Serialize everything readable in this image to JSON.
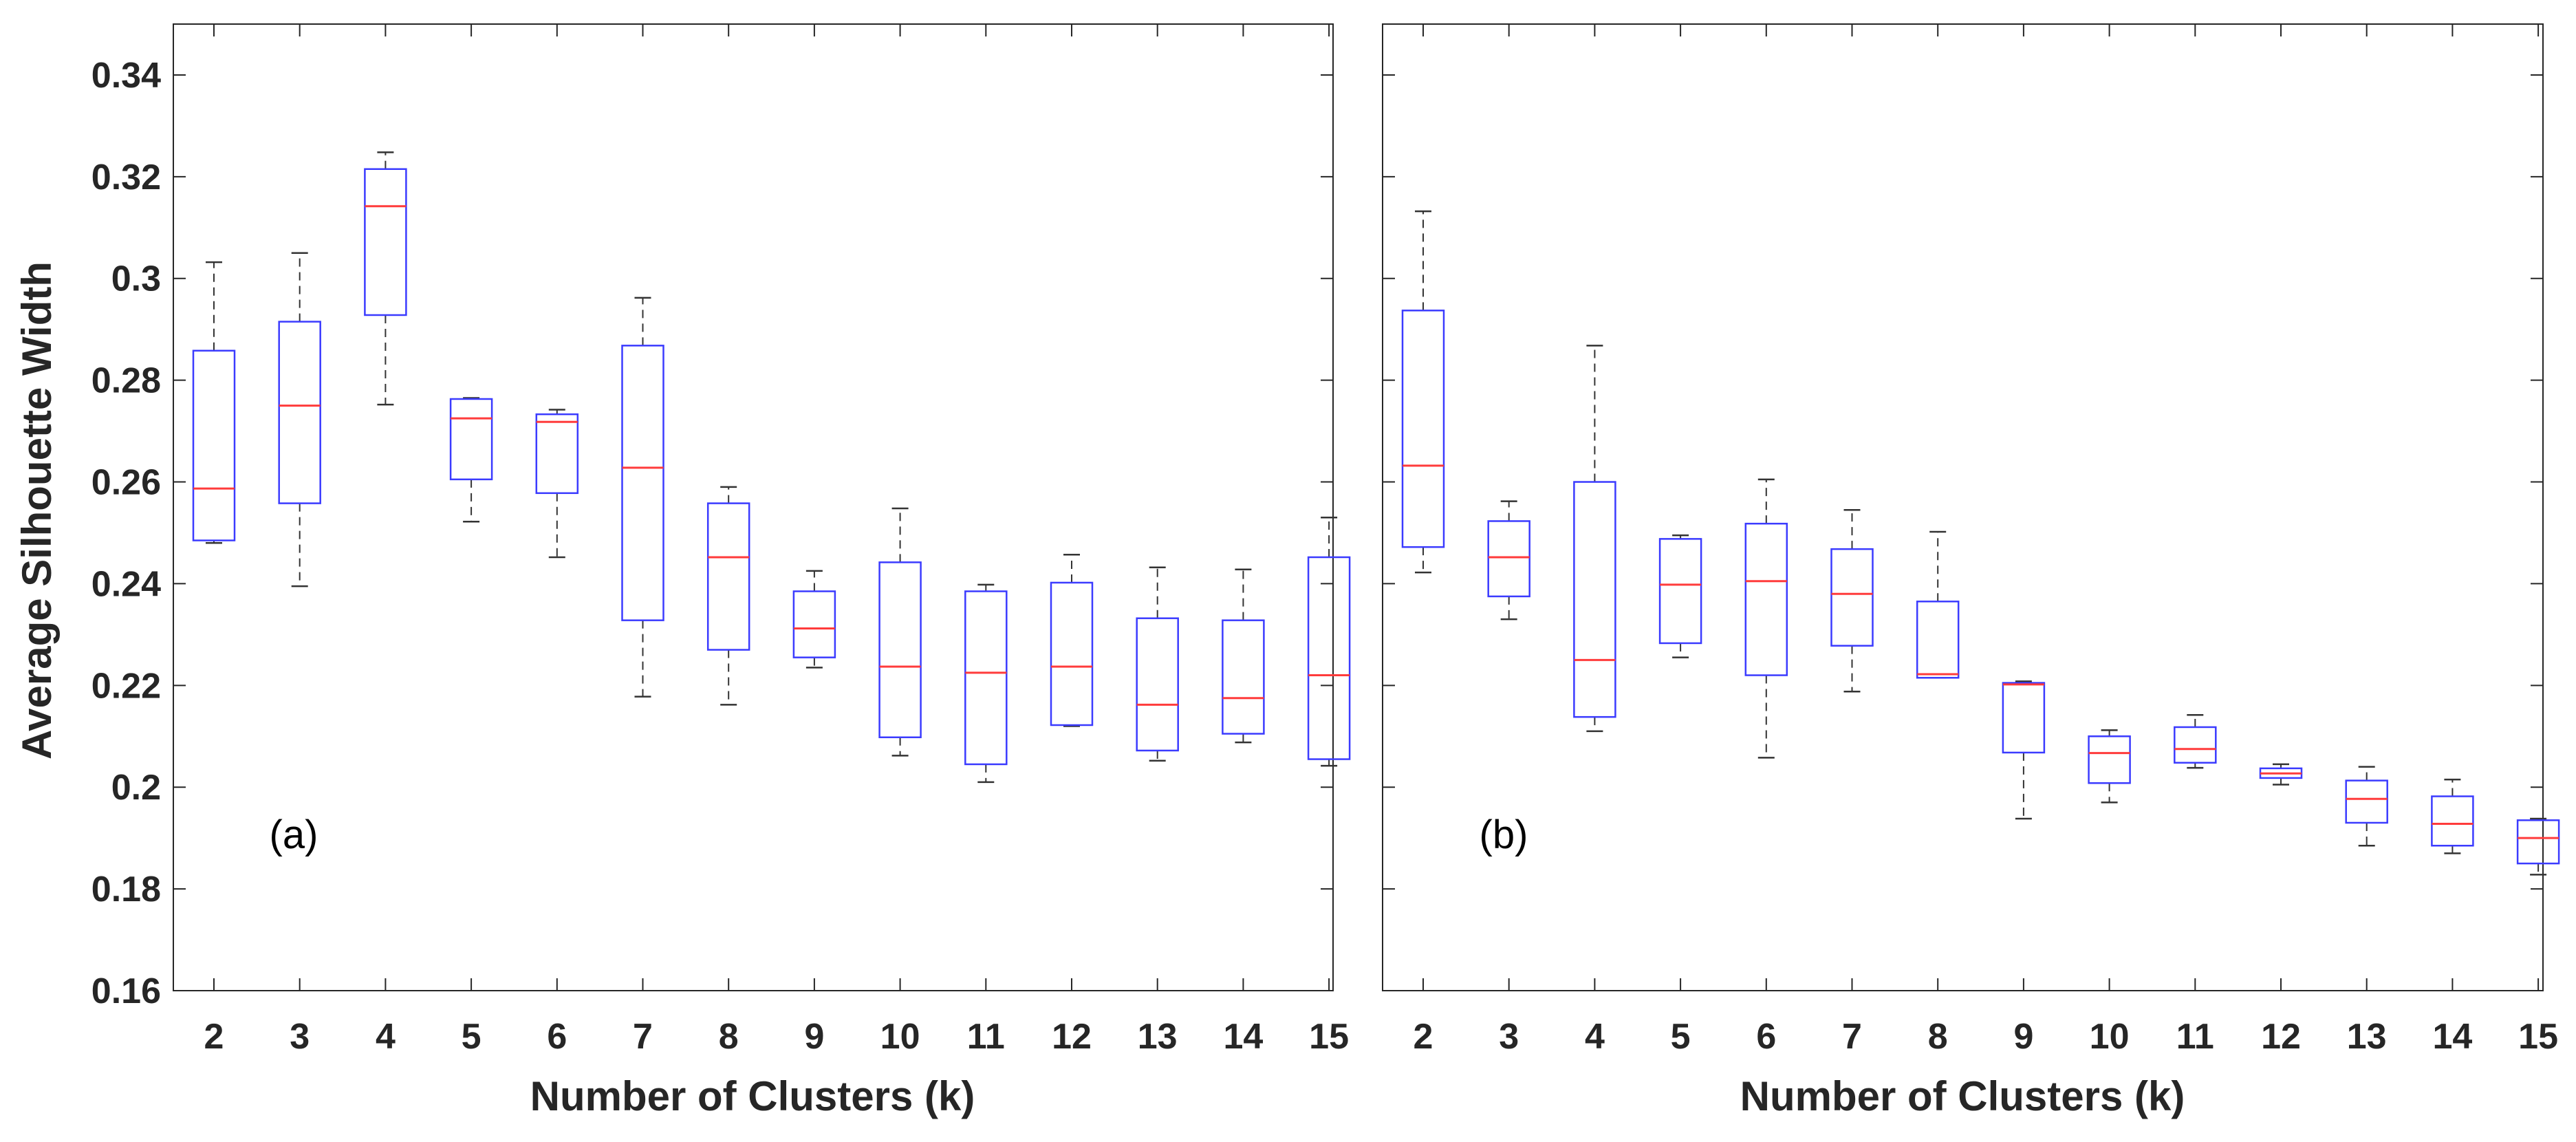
{
  "figure": {
    "ylabel": "Average Silhouette Width",
    "colors": {
      "box": "#3b3bff",
      "median": "#ff3b3b",
      "whisker": "#333333",
      "frame": "#262626"
    }
  },
  "chart_data": [
    {
      "type": "box",
      "panel_label": "(a)",
      "title": "",
      "xlabel": "Number of Clusters (k)",
      "ylabel": "Average Silhouette Width",
      "ylim": [
        0.16,
        0.35
      ],
      "yticks": [
        0.16,
        0.18,
        0.2,
        0.22,
        0.24,
        0.26,
        0.28,
        0.3,
        0.32,
        0.34
      ],
      "ytick_labels": [
        "0.16",
        "0.18",
        "0.2",
        "0.22",
        "0.24",
        "0.26",
        "0.28",
        "0.3",
        "0.32",
        "0.34"
      ],
      "categories": [
        "2",
        "3",
        "4",
        "5",
        "6",
        "7",
        "8",
        "9",
        "10",
        "11",
        "12",
        "13",
        "14",
        "15"
      ],
      "boxes": [
        {
          "k": "2",
          "min": 0.248,
          "q1": 0.2485,
          "median": 0.2587,
          "q3": 0.2858,
          "max": 0.3032
        },
        {
          "k": "3",
          "min": 0.2395,
          "q1": 0.2558,
          "median": 0.275,
          "q3": 0.2915,
          "max": 0.305
        },
        {
          "k": "4",
          "min": 0.2752,
          "q1": 0.2928,
          "median": 0.3142,
          "q3": 0.3215,
          "max": 0.3248
        },
        {
          "k": "5",
          "min": 0.2522,
          "q1": 0.2605,
          "median": 0.2725,
          "q3": 0.2763,
          "max": 0.2765
        },
        {
          "k": "6",
          "min": 0.2452,
          "q1": 0.2578,
          "median": 0.2718,
          "q3": 0.2733,
          "max": 0.2742
        },
        {
          "k": "7",
          "min": 0.2178,
          "q1": 0.2328,
          "median": 0.2628,
          "q3": 0.2868,
          "max": 0.2962
        },
        {
          "k": "8",
          "min": 0.2162,
          "q1": 0.227,
          "median": 0.2452,
          "q3": 0.2558,
          "max": 0.259
        },
        {
          "k": "9",
          "min": 0.2235,
          "q1": 0.2255,
          "median": 0.2312,
          "q3": 0.2385,
          "max": 0.2425
        },
        {
          "k": "10",
          "min": 0.2062,
          "q1": 0.2098,
          "median": 0.2237,
          "q3": 0.2442,
          "max": 0.2548
        },
        {
          "k": "11",
          "min": 0.201,
          "q1": 0.2045,
          "median": 0.2225,
          "q3": 0.2385,
          "max": 0.2398
        },
        {
          "k": "12",
          "min": 0.212,
          "q1": 0.2122,
          "median": 0.2237,
          "q3": 0.2402,
          "max": 0.2457
        },
        {
          "k": "13",
          "min": 0.2052,
          "q1": 0.2072,
          "median": 0.2162,
          "q3": 0.2332,
          "max": 0.2432
        },
        {
          "k": "14",
          "min": 0.2088,
          "q1": 0.2105,
          "median": 0.2175,
          "q3": 0.2328,
          "max": 0.2428
        },
        {
          "k": "15",
          "min": 0.2042,
          "q1": 0.2055,
          "median": 0.222,
          "q3": 0.2452,
          "max": 0.253
        }
      ]
    },
    {
      "type": "box",
      "panel_label": "(b)",
      "title": "",
      "xlabel": "Number of Clusters (k)",
      "ylabel": "",
      "ylim": [
        0.16,
        0.35
      ],
      "yticks": [
        0.16,
        0.18,
        0.2,
        0.22,
        0.24,
        0.26,
        0.28,
        0.3,
        0.32,
        0.34
      ],
      "ytick_labels": [],
      "categories": [
        "2",
        "3",
        "4",
        "5",
        "6",
        "7",
        "8",
        "9",
        "10",
        "11",
        "12",
        "13",
        "14",
        "15"
      ],
      "boxes": [
        {
          "k": "2",
          "min": 0.2422,
          "q1": 0.2472,
          "median": 0.2632,
          "q3": 0.2937,
          "max": 0.3132
        },
        {
          "k": "3",
          "min": 0.233,
          "q1": 0.2375,
          "median": 0.2452,
          "q3": 0.2523,
          "max": 0.2562
        },
        {
          "k": "4",
          "min": 0.211,
          "q1": 0.2138,
          "median": 0.225,
          "q3": 0.26,
          "max": 0.2868
        },
        {
          "k": "5",
          "min": 0.2255,
          "q1": 0.2283,
          "median": 0.2398,
          "q3": 0.2488,
          "max": 0.2495
        },
        {
          "k": "6",
          "min": 0.2058,
          "q1": 0.222,
          "median": 0.2405,
          "q3": 0.2518,
          "max": 0.2605
        },
        {
          "k": "7",
          "min": 0.2188,
          "q1": 0.2278,
          "median": 0.238,
          "q3": 0.2468,
          "max": 0.2545
        },
        {
          "k": "8",
          "min": 0.2215,
          "q1": 0.2215,
          "median": 0.2222,
          "q3": 0.2365,
          "max": 0.2502
        },
        {
          "k": "9",
          "min": 0.1938,
          "q1": 0.2068,
          "median": 0.2202,
          "q3": 0.2205,
          "max": 0.2208
        },
        {
          "k": "10",
          "min": 0.197,
          "q1": 0.2008,
          "median": 0.2067,
          "q3": 0.21,
          "max": 0.2112
        },
        {
          "k": "11",
          "min": 0.2038,
          "q1": 0.2048,
          "median": 0.2075,
          "q3": 0.2118,
          "max": 0.2142
        },
        {
          "k": "12",
          "min": 0.2005,
          "q1": 0.2018,
          "median": 0.2027,
          "q3": 0.2037,
          "max": 0.2045
        },
        {
          "k": "13",
          "min": 0.1885,
          "q1": 0.193,
          "median": 0.1977,
          "q3": 0.2013,
          "max": 0.204
        },
        {
          "k": "14",
          "min": 0.187,
          "q1": 0.1885,
          "median": 0.1928,
          "q3": 0.1982,
          "max": 0.2015
        },
        {
          "k": "15",
          "min": 0.1828,
          "q1": 0.185,
          "median": 0.19,
          "q3": 0.1935,
          "max": 0.1938
        }
      ]
    }
  ]
}
